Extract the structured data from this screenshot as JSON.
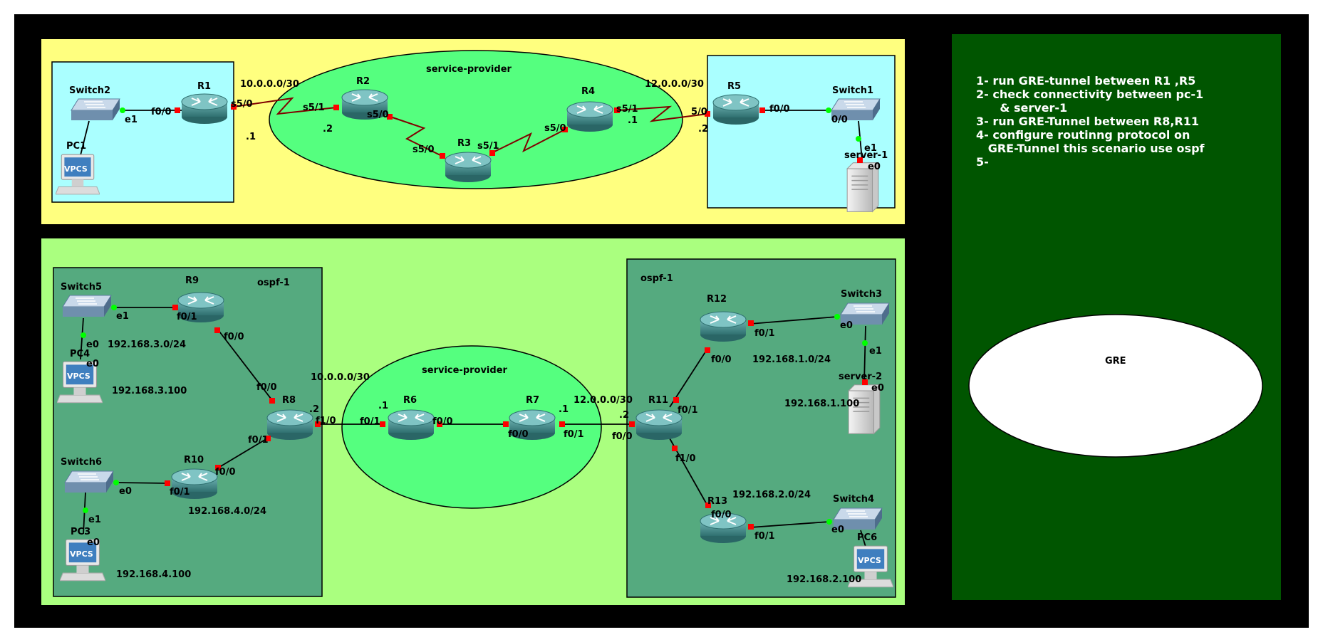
{
  "colors": {
    "frame": "#000000",
    "top_band": "#ffff7f",
    "bottom_band": "#aaff7f",
    "site_box": "#aaffff",
    "ospf_box": "#55aa7f",
    "provider_cloud": "#55ff7f",
    "task_panel": "#005500",
    "gre_ellipse": "#ffffff",
    "port_dot": "#ff0000",
    "link_up": "#00ff00",
    "serial_link": "#800000"
  },
  "areas": {
    "top_provider": "service-provider",
    "bottom_provider": "service-provider",
    "ospf_left": "ospf-1",
    "ospf_right": "ospf-1",
    "gre": "GRE"
  },
  "devices": {
    "switch2": "Switch2",
    "r1": "R1",
    "pc1": "PC1",
    "r2": "R2",
    "r3": "R3",
    "r4": "R4",
    "r5": "R5",
    "switch1": "Switch1",
    "server1": "server-1",
    "switch5": "Switch5",
    "r9": "R9",
    "pc4": "PC4",
    "r8": "R8",
    "switch6": "Switch6",
    "r10": "R10",
    "pc3": "PC3",
    "r6": "R6",
    "r7": "R7",
    "r11": "R11",
    "r12": "R12",
    "switch3": "Switch3",
    "server2": "server-2",
    "r13": "R13",
    "switch4": "Switch4",
    "pc6": "PC6"
  },
  "device_badges": {
    "vpcs": "VPCS"
  },
  "ports": {
    "sw2_e1": "e1",
    "r1_f00": "f0/0",
    "r1_s50": "s5/0",
    "r2_s51": "s5/1",
    "r2_s50": "s5/0",
    "r3_s50": "s5/0",
    "r3_s51": "s5/1",
    "r4_s50": "s5/0",
    "r4_s51": "s5/1",
    "r5_s50": "5/0",
    "r5_f00": "f0/0",
    "sw1_00": "0/0",
    "sw1_e1": "e1",
    "srv1_e0": "e0",
    "sw5_e1": "e1",
    "sw5_e0": "e0",
    "pc4_e0": "e0",
    "r9_f01": "f0/1",
    "r9_f00": "f0/0",
    "r8_f00": "f0/0",
    "r8_f01": "f0/1",
    "r8_f10": "f1/0",
    "r10_f00": "f0/0",
    "r10_f01": "f0/1",
    "sw6_e0": "e0",
    "sw6_e1": "e1",
    "pc3_e0": "e0",
    "r6_f01": "f0/1",
    "r6_f00": "f0/0",
    "r7_f00": "f0/0",
    "r7_f01": "f0/1",
    "r11_f00": "f0/0",
    "r11_f01": "f0/1",
    "r11_f10": "f1/0",
    "r12_f00": "f0/0",
    "r12_f01": "f0/1",
    "sw3_e0": "e0",
    "sw3_e1": "e1",
    "srv2_e0": "e0",
    "r13_f00": "f0/0",
    "r13_f01": "f0/1",
    "sw4_e0": "e0"
  },
  "addresses": {
    "net_r1_r2": "10.0.0.0/30",
    "r1_host": ".1",
    "r2_host": ".2",
    "net_r4_r5": "12.0.0.0/30",
    "r4_host": ".1",
    "r5_host": ".2",
    "net_r9": "192.168.3.0/24",
    "pc4_ip": "192.168.3.100",
    "net_r8_r6": "10.0.0.0/30",
    "r8_host": ".2",
    "r6_host": ".1",
    "net_r10": "192.168.4.0/24",
    "pc3_ip": "192.168.4.100",
    "net_r7_r11": "12.0.0.0/30",
    "r7_host": ".1",
    "r11_host": ".2",
    "net_r12": "192.168.1.0/24",
    "server2_ip": "192.168.1.100",
    "net_r13": "192.168.2.0/24",
    "pc6_ip": "192.168.2.100"
  },
  "tasks": [
    "1- run GRE-tunnel between R1 ,R5",
    "2- check connectivity between pc-1",
    "      & server-1",
    "3- run GRE-Tunnel between R8,R11",
    "4- configure routinng protocol on",
    "   GRE-Tunnel this scenario use ospf",
    "5-"
  ]
}
